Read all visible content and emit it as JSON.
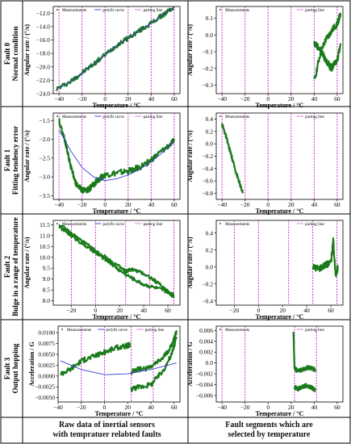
{
  "colors": {
    "measurement": "#1a7a1a",
    "polyfit": "#3a3ae0",
    "parting": "#cc33cc"
  },
  "legend": {
    "measurements": "Measurements",
    "polyfit": "polyfit curve",
    "parting": "parting line"
  },
  "rows": [
    {
      "fault": "Fault 0",
      "condition": "Normal condition"
    },
    {
      "fault": "Fault 1",
      "condition": "Fitting tendency error"
    },
    {
      "fault": "Fault 2",
      "condition": "Bulge in a range of temperature"
    },
    {
      "fault": "Fault 3",
      "condition": "Output hopping"
    }
  ],
  "captions": {
    "left_line1": "Raw data of  inertial sensors",
    "left_line2": "with tempratuer relabted  faults",
    "right_line1": "Fault segments which are",
    "right_line2": "selected  by temperature"
  },
  "chart_data": [
    {
      "id": "f0-raw",
      "type": "line",
      "xlabel": "Temperature / °C",
      "ylabel": "Angular rate / (°/s)",
      "xlim": [
        -45,
        65
      ],
      "ylim": [
        -24,
        -11
      ],
      "xticks": [
        -40,
        -20,
        0,
        20,
        40,
        60
      ],
      "yticks": [
        -24,
        -22,
        -20,
        -18,
        -16,
        -14,
        -12
      ],
      "parting_lines": [
        -40,
        -20,
        0,
        20,
        40,
        60
      ],
      "legend": [
        "Measurements",
        "polyfit curve",
        "parting line"
      ],
      "series": [
        {
          "name": "Measurements",
          "x": [
            -42,
            -30,
            -20,
            -10,
            0,
            10,
            20,
            30,
            40,
            50,
            60
          ],
          "y": [
            -23.3,
            -22.2,
            -20.9,
            -19.6,
            -18.2,
            -16.8,
            -15.7,
            -14.6,
            -13.5,
            -12.3,
            -11.1
          ]
        },
        {
          "name": "polyfit curve",
          "x": [
            -42,
            -30,
            -20,
            -10,
            0,
            10,
            20,
            30,
            40,
            50,
            60
          ],
          "y": [
            -23.3,
            -22.2,
            -20.9,
            -19.6,
            -18.2,
            -16.8,
            -15.7,
            -14.6,
            -13.5,
            -12.3,
            -11.1
          ]
        }
      ]
    },
    {
      "id": "f0-seg",
      "type": "line",
      "xlabel": "Temperature / °C",
      "ylabel": "Angular rate / (°/s)",
      "xlim": [
        -45,
        65
      ],
      "ylim": [
        -0.35,
        0.17
      ],
      "xticks": [
        -40,
        -20,
        0,
        20,
        40,
        60
      ],
      "yticks": [
        -0.3,
        -0.2,
        -0.1,
        0.0,
        0.1
      ],
      "parting_lines": [
        -40,
        -20,
        0,
        20,
        40,
        60
      ],
      "legend": [
        "Measurements",
        "parting line"
      ],
      "series": [
        {
          "name": "Measurements",
          "x": [
            40,
            45,
            50,
            55,
            60,
            63
          ],
          "y": [
            -0.28,
            -0.12,
            -0.03,
            0.02,
            0.07,
            0.12
          ]
        },
        {
          "name": "Measurements",
          "x": [
            40,
            45,
            50,
            55,
            60,
            63
          ],
          "y": [
            -0.05,
            -0.08,
            -0.15,
            -0.2,
            -0.15,
            -0.05
          ]
        }
      ]
    },
    {
      "id": "f1-raw",
      "type": "line",
      "xlabel": "Temperature / °C",
      "ylabel": "Angular rate / (°/s)",
      "xlim": [
        -45,
        65
      ],
      "ylim": [
        -3.6,
        -1.3
      ],
      "xticks": [
        -40,
        -20,
        0,
        20,
        40,
        60
      ],
      "yticks": [
        -3.5,
        -3.0,
        -2.5,
        -2.0,
        -1.5
      ],
      "parting_lines": [
        -40,
        -20,
        0,
        20,
        40,
        60
      ],
      "legend": [
        "Measurements",
        "polyfit curve",
        "parting line"
      ],
      "series": [
        {
          "name": "Measurements",
          "x": [
            -40,
            -35,
            -30,
            -25,
            -20,
            -15,
            -10,
            -5,
            0,
            10,
            20,
            30,
            40,
            50,
            60
          ],
          "y": [
            -1.5,
            -2.0,
            -2.7,
            -3.2,
            -3.35,
            -3.35,
            -3.2,
            -3.05,
            -2.95,
            -2.9,
            -2.85,
            -2.75,
            -2.55,
            -2.3,
            -2.05
          ]
        },
        {
          "name": "polyfit curve",
          "x": [
            -40,
            -30,
            -20,
            -10,
            0,
            10,
            20,
            30,
            40,
            50,
            60
          ],
          "y": [
            -1.75,
            -2.3,
            -2.75,
            -3.0,
            -3.1,
            -3.05,
            -2.95,
            -2.8,
            -2.6,
            -2.35,
            -2.05
          ]
        }
      ]
    },
    {
      "id": "f1-seg",
      "type": "line",
      "xlabel": "Temperature / °C",
      "ylabel": "Angular rate / (°/s)",
      "xlim": [
        -45,
        65
      ],
      "ylim": [
        -0.9,
        0.5
      ],
      "xticks": [
        -40,
        -20,
        0,
        20,
        40,
        60
      ],
      "yticks": [
        -0.8,
        -0.6,
        -0.4,
        -0.2,
        0.0,
        0.2,
        0.4
      ],
      "parting_lines": [
        -40,
        -20,
        0,
        20,
        40,
        60
      ],
      "legend": [
        "Measurements",
        "parting line"
      ],
      "series": [
        {
          "name": "Measurements",
          "x": [
            -40,
            -37,
            -34,
            -31,
            -28,
            -25,
            -22
          ],
          "y": [
            0.32,
            0.15,
            -0.05,
            -0.25,
            -0.45,
            -0.62,
            -0.8
          ]
        }
      ]
    },
    {
      "id": "f2-raw",
      "type": "line",
      "xlabel": "Temperature / °C",
      "ylabel": "Angular rate / (°/s)",
      "xlim": [
        -35,
        70
      ],
      "ylim": [
        7.8,
        11.7
      ],
      "xticks": [
        -20,
        0,
        20,
        40,
        60
      ],
      "yticks": [
        8.0,
        8.5,
        9.0,
        9.5,
        10.0,
        10.5,
        11.0,
        11.5
      ],
      "parting_lines": [
        -20,
        0,
        25,
        45,
        65
      ],
      "legend": [
        "Measurements",
        "polyfit curve",
        "parting line"
      ],
      "series": [
        {
          "name": "Measurements",
          "x": [
            -30,
            -20,
            -10,
            0,
            10,
            20,
            25,
            30,
            40,
            50,
            60,
            65
          ],
          "y": [
            11.5,
            11.1,
            10.7,
            10.3,
            9.95,
            9.55,
            9.35,
            9.45,
            9.25,
            8.9,
            8.45,
            8.25
          ]
        },
        {
          "name": "Measurements",
          "x": [
            -30,
            -20,
            -10,
            0,
            10,
            20,
            30,
            40,
            50,
            60,
            65
          ],
          "y": [
            11.4,
            11.0,
            10.6,
            10.2,
            9.85,
            9.4,
            9.05,
            8.75,
            8.6,
            8.4,
            8.2
          ]
        }
      ]
    },
    {
      "id": "f2-seg",
      "type": "line",
      "xlabel": "Temperature / °C",
      "ylabel": "Angular rate / (°/s)",
      "xlim": [
        -35,
        70
      ],
      "ylim": [
        -0.45,
        0.55
      ],
      "xticks": [
        -20,
        0,
        20,
        40,
        60
      ],
      "yticks": [
        -0.4,
        -0.2,
        0.0,
        0.2,
        0.4
      ],
      "parting_lines": [
        -20,
        0,
        25,
        45,
        65
      ],
      "legend": [
        "Measurements",
        "parting line"
      ],
      "series": [
        {
          "name": "Measurements",
          "x": [
            45,
            50,
            55,
            60,
            62,
            64,
            66
          ],
          "y": [
            0.0,
            -0.02,
            0.02,
            0.05,
            0.3,
            -0.1,
            0.0
          ]
        }
      ]
    },
    {
      "id": "f3-raw",
      "type": "line",
      "xlabel": "Temperature / °C",
      "ylabel": "Acceleration / G",
      "xlim": [
        -40,
        65
      ],
      "ylim": [
        -0.006,
        0.0115
      ],
      "xticks": [
        -40,
        -20,
        0,
        20,
        40,
        60
      ],
      "yticks": [
        -0.005,
        -0.0025,
        0.0,
        0.0025,
        0.005,
        0.0075,
        0.01
      ],
      "ytick_labels": [
        "−0.0050",
        "−0.0025",
        "0.0000",
        "0.0025",
        "0.0050",
        "0.0075",
        "0.0100"
      ],
      "parting_lines": [
        -20,
        0,
        23,
        42
      ],
      "legend": [
        "Measurements",
        "polyfit curve",
        "parting line"
      ],
      "series": [
        {
          "name": "Measurements",
          "x": [
            -38,
            -30,
            -20,
            -10,
            0,
            10,
            20,
            22
          ],
          "y": [
            0.0005,
            0.0015,
            0.0035,
            0.0045,
            0.0055,
            0.0065,
            0.007,
            0.0072
          ]
        },
        {
          "name": "Measurements",
          "x": [
            23,
            30,
            40,
            50,
            58,
            62
          ],
          "y": [
            -0.003,
            -0.0025,
            -0.002,
            0.001,
            0.005,
            0.009
          ]
        },
        {
          "name": "Measurements",
          "x": [
            23,
            30,
            40,
            50,
            58,
            62
          ],
          "y": [
            0.001,
            0.0015,
            0.002,
            0.004,
            0.007,
            0.0105
          ]
        },
        {
          "name": "polyfit curve",
          "x": [
            -38,
            -20,
            0,
            20,
            40,
            62
          ],
          "y": [
            0.0035,
            0.0015,
            0.0003,
            0.0005,
            0.0015,
            0.003
          ]
        }
      ]
    },
    {
      "id": "f3-seg",
      "type": "line",
      "xlabel": "Temperature / °C",
      "ylabel": "Acceleration / G",
      "xlim": [
        -45,
        65
      ],
      "ylim": [
        -0.0072,
        0.0068
      ],
      "xticks": [
        -40,
        -20,
        0,
        20,
        40,
        60
      ],
      "yticks": [
        -0.006,
        -0.004,
        -0.002,
        0.0,
        0.002,
        0.004,
        0.006
      ],
      "parting_lines": [
        -40,
        -20,
        23,
        42
      ],
      "legend": [
        "Measurements",
        "parting line"
      ],
      "series": [
        {
          "name": "Measurements",
          "x": [
            23,
            26,
            30,
            34,
            38,
            41
          ],
          "y": [
            -0.001,
            -0.0015,
            -0.0012,
            -0.0008,
            -0.001,
            -0.0012
          ]
        },
        {
          "name": "Measurements",
          "x": [
            23,
            26,
            30,
            34,
            38,
            41
          ],
          "y": [
            -0.0045,
            -0.0048,
            -0.0043,
            -0.0042,
            -0.0046,
            -0.005
          ]
        },
        {
          "name": "Measurements",
          "x": [
            22,
            23
          ],
          "y": [
            0.006,
            -0.001
          ]
        }
      ]
    }
  ]
}
